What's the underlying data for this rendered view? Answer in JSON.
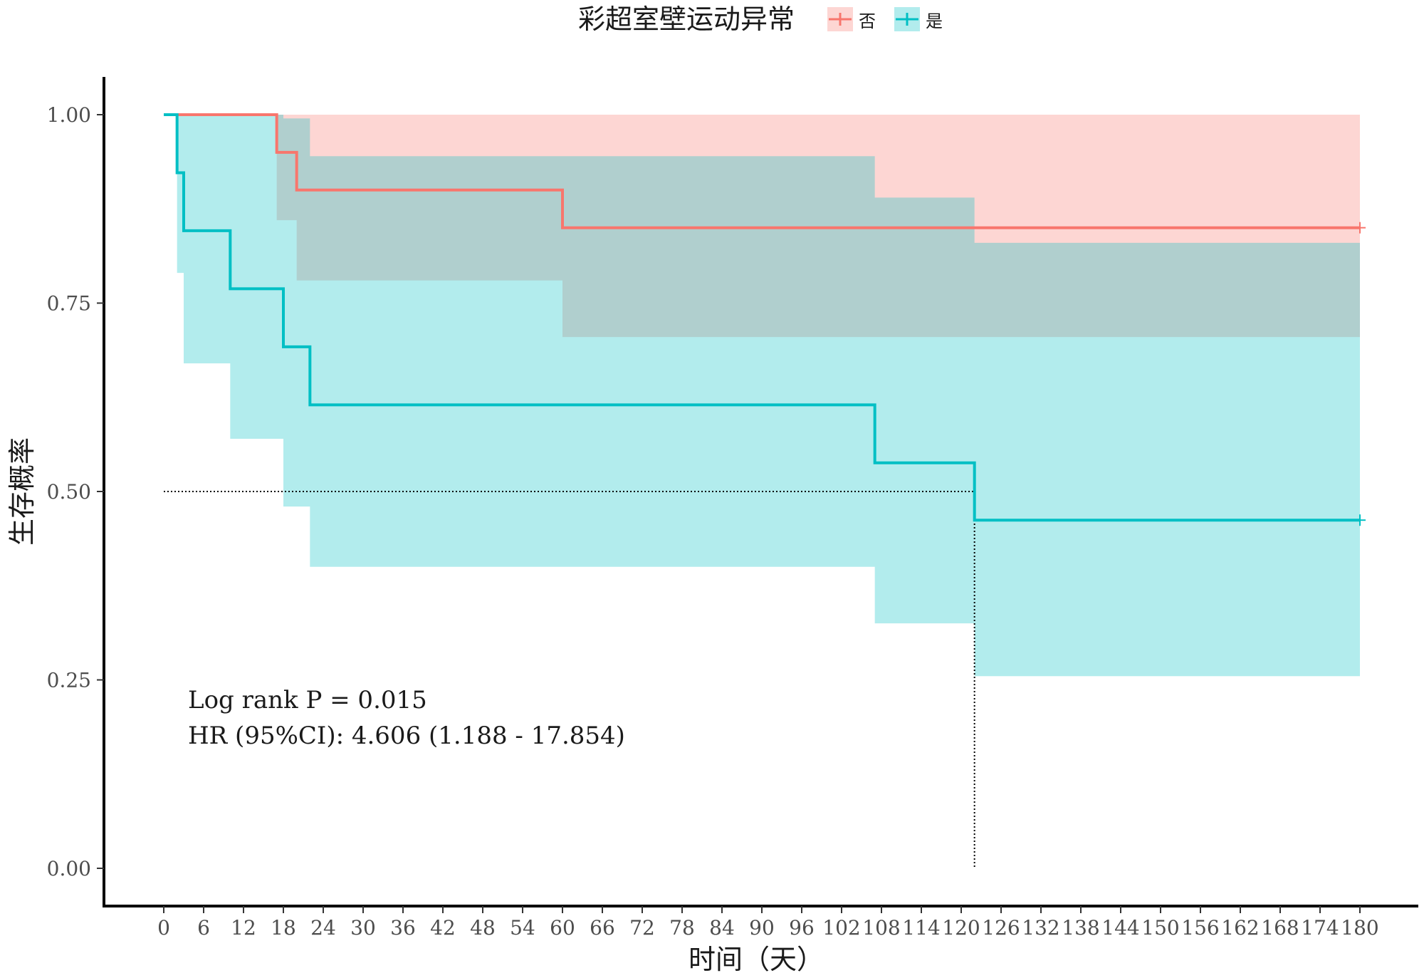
{
  "chart_data": {
    "type": "line",
    "subtype": "kaplan-meier",
    "legend_title": "彩超室壁运动异常",
    "legend_position": "top",
    "xlabel": "时间（天）",
    "ylabel": "生存概率",
    "xlim": [
      0,
      180
    ],
    "ylim": [
      0,
      1
    ],
    "x_ticks": [
      0,
      6,
      12,
      18,
      24,
      30,
      36,
      42,
      48,
      54,
      60,
      66,
      72,
      78,
      84,
      90,
      96,
      102,
      108,
      114,
      120,
      126,
      132,
      138,
      144,
      150,
      156,
      162,
      168,
      174,
      180
    ],
    "y_ticks": [
      0,
      0.25,
      0.5,
      0.75,
      1
    ],
    "y_tick_labels": [
      "0.00",
      "0.25",
      "0.50",
      "0.75",
      "1.00"
    ],
    "median_line": {
      "y": 0.5,
      "x_end": 122
    },
    "annotations": [
      "Log rank P = 0.015",
      "HR (95%CI): 4.606 (1.188 - 17.854)"
    ],
    "series": [
      {
        "name": "否",
        "color": "#F8766D",
        "fill": "#F8766D",
        "steps": [
          [
            0,
            1.0
          ],
          [
            17,
            0.95
          ],
          [
            20,
            0.9
          ],
          [
            60,
            0.85
          ],
          [
            180,
            0.85
          ]
        ],
        "ci": [
          [
            0,
            1.0,
            1.0
          ],
          [
            17,
            1.0,
            0.86
          ],
          [
            20,
            1.0,
            0.78
          ],
          [
            60,
            1.0,
            0.705
          ],
          [
            108,
            1.0,
            0.705
          ],
          [
            122,
            1.0,
            0.705
          ],
          [
            180,
            1.0,
            0.705
          ]
        ],
        "censor": [
          [
            180,
            0.85
          ]
        ]
      },
      {
        "name": "是",
        "color": "#00BFC4",
        "fill": "#00BFC4",
        "steps": [
          [
            0,
            1.0
          ],
          [
            2,
            0.923
          ],
          [
            3,
            0.846
          ],
          [
            10,
            0.769
          ],
          [
            18,
            0.692
          ],
          [
            22,
            0.615
          ],
          [
            107,
            0.538
          ],
          [
            122,
            0.462
          ],
          [
            180,
            0.462
          ]
        ],
        "ci": [
          [
            0,
            1.0,
            1.0
          ],
          [
            2,
            1.0,
            0.79
          ],
          [
            3,
            1.0,
            0.67
          ],
          [
            10,
            1.0,
            0.57
          ],
          [
            18,
            0.995,
            0.48
          ],
          [
            22,
            0.945,
            0.4
          ],
          [
            107,
            0.89,
            0.325
          ],
          [
            122,
            0.83,
            0.255
          ],
          [
            180,
            0.83,
            0.255
          ]
        ],
        "censor": [
          [
            180,
            0.462
          ]
        ]
      }
    ]
  }
}
